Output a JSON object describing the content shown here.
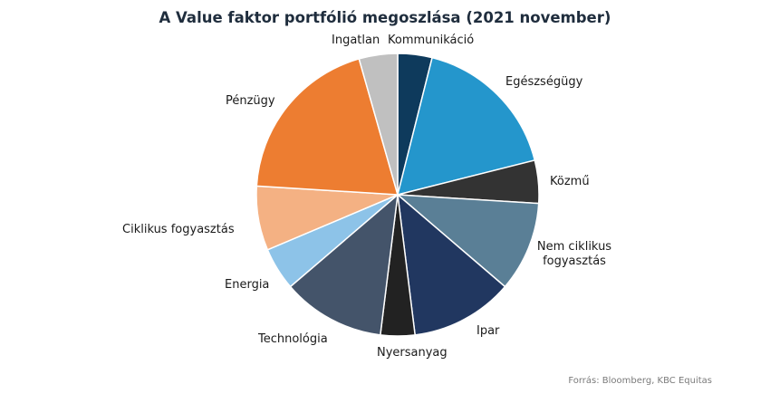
{
  "chart_data": {
    "type": "pie",
    "title": "A Value faktor portfólió megoszlása (2021 november)",
    "source": "Forrás: Bloomberg, KBC Equitas",
    "slices": [
      {
        "label": "Kommunikáció",
        "value": 4.0,
        "color": "#0e3a5c"
      },
      {
        "label": "Egészségügy",
        "value": 17.5,
        "color": "#2496cc"
      },
      {
        "label": "Közmű",
        "value": 5.0,
        "color": "#333333"
      },
      {
        "label": "Nem ciklikus fogyasztás",
        "value": 10.5,
        "color": "#5a7f96"
      },
      {
        "label": "Ipar",
        "value": 12.0,
        "color": "#213760"
      },
      {
        "label": "Nyersanyag",
        "value": 4.0,
        "color": "#222222"
      },
      {
        "label": "Technológia",
        "value": 12.0,
        "color": "#44546a"
      },
      {
        "label": "Energia",
        "value": 5.0,
        "color": "#8dc3e8"
      },
      {
        "label": "Ciklikus fogyasztás",
        "value": 7.5,
        "color": "#f4b183"
      },
      {
        "label": "Pénzügy",
        "value": 20.0,
        "color": "#ed7d31"
      },
      {
        "label": "Ingatlan",
        "value": 4.5,
        "color": "#c0c0c0"
      }
    ]
  }
}
